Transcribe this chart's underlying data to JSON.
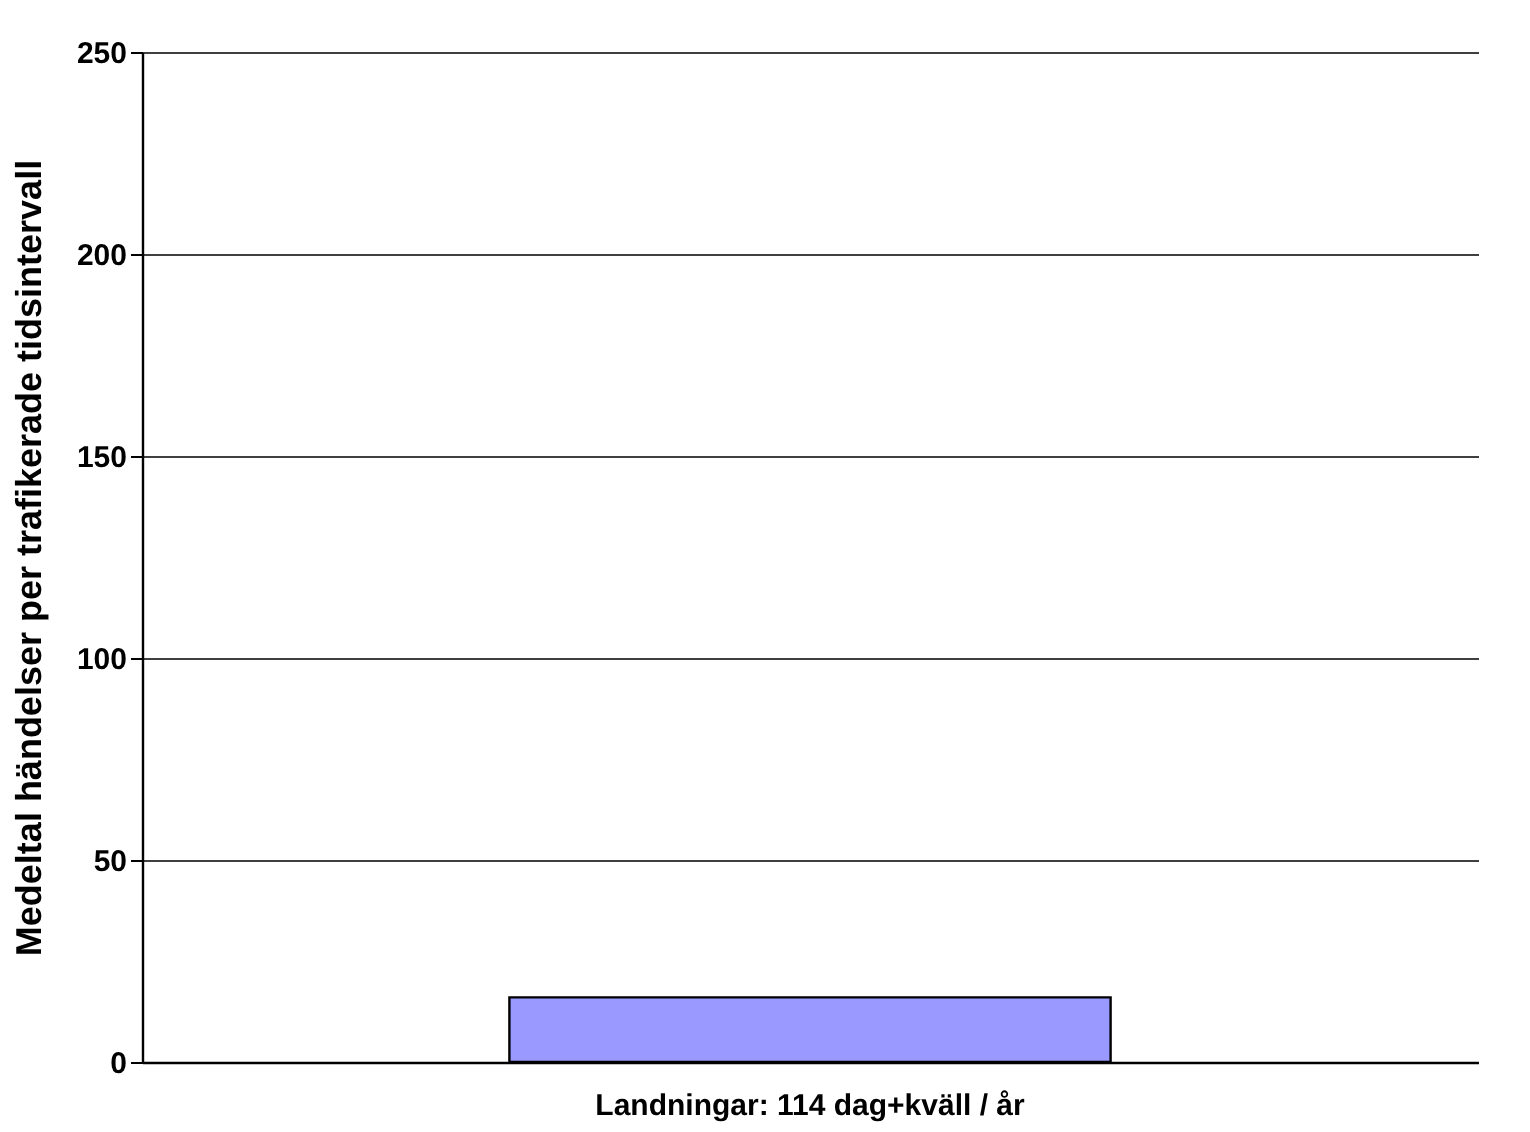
{
  "chart_data": {
    "type": "bar",
    "ylabel": "Medeltal händelser per trafikerade tidsintervall",
    "categories": [
      "Landningar: 114 dag+kväll / år"
    ],
    "values": [
      16
    ],
    "color": "#9999ff",
    "ylim": [
      0,
      250
    ],
    "yticks": [
      0,
      50,
      100,
      150,
      200,
      250
    ],
    "grid": "y"
  }
}
